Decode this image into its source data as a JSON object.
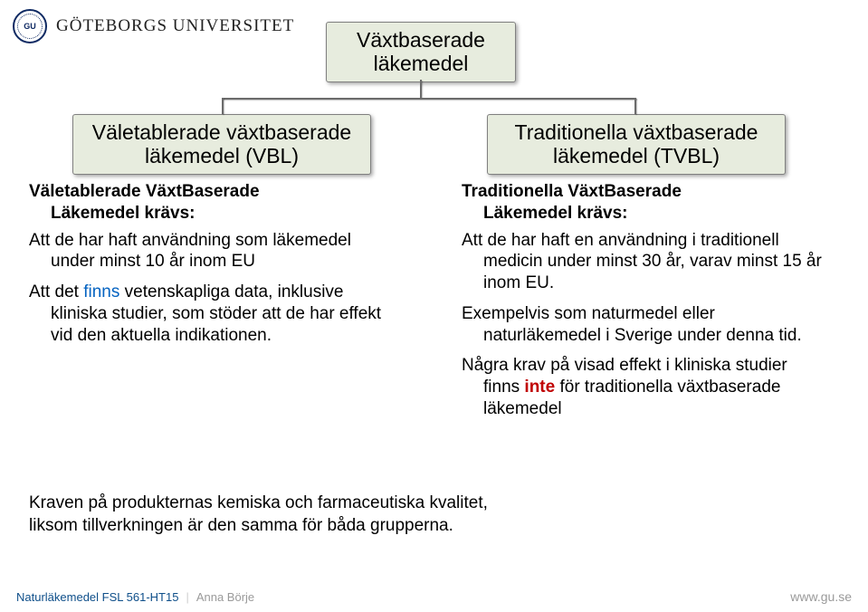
{
  "header": {
    "institution": "GÖTEBORGS UNIVERSITET",
    "seal_label": "GU"
  },
  "diagram": {
    "box_bg": "#e7ecde",
    "box_border": "#808080",
    "connector_color": "#6b6b6b",
    "top": {
      "line1": "Växtbaserade",
      "line2": "läkemedel"
    },
    "left": {
      "line1": "Väletablerade växtbaserade",
      "line2": "läkemedel (VBL)"
    },
    "right": {
      "line1": "Traditionella växtbaserade",
      "line2": "läkemedel (TVBL)"
    }
  },
  "left_col": {
    "heading_l1": "Väletablerade VäxtBaserade",
    "heading_l2": "Läkemedel krävs:",
    "p1_a": "Att de har haft användning som läkemedel under minst 10 år inom EU",
    "p2_pre": "Att det ",
    "p2_finns": "finns",
    "p2_post": " vetenskapliga data, inklusive kliniska studier, som stöder att de har effekt vid den aktuella indikationen."
  },
  "right_col": {
    "heading_l1": "Traditionella VäxtBaserade",
    "heading_l2": "Läkemedel krävs:",
    "p1": "Att de har haft en användning i traditionell medicin under minst 30 år, varav minst 15 år inom EU.",
    "p2": "Exempelvis som naturmedel eller naturläkemedel i Sverige under denna tid.",
    "p3_pre": "Några krav på visad effekt i kliniska studier finns ",
    "p3_inte": "inte",
    "p3_post": " för traditionella växtbaserade läkemedel"
  },
  "bottom_note": {
    "l1": "Kraven på produkternas kemiska och farmaceutiska kvalitet,",
    "l2": "liksom tillverkningen är den samma för båda grupperna."
  },
  "footer": {
    "course": "Naturläkemedel FSL 561-HT15",
    "author": "Anna Börje",
    "url": "www.gu.se"
  },
  "colors": {
    "link_blue": "#0563c1",
    "emphasis_red": "#c00000",
    "footer_course": "#0f4f8a",
    "footer_muted": "#9a9a9a"
  }
}
